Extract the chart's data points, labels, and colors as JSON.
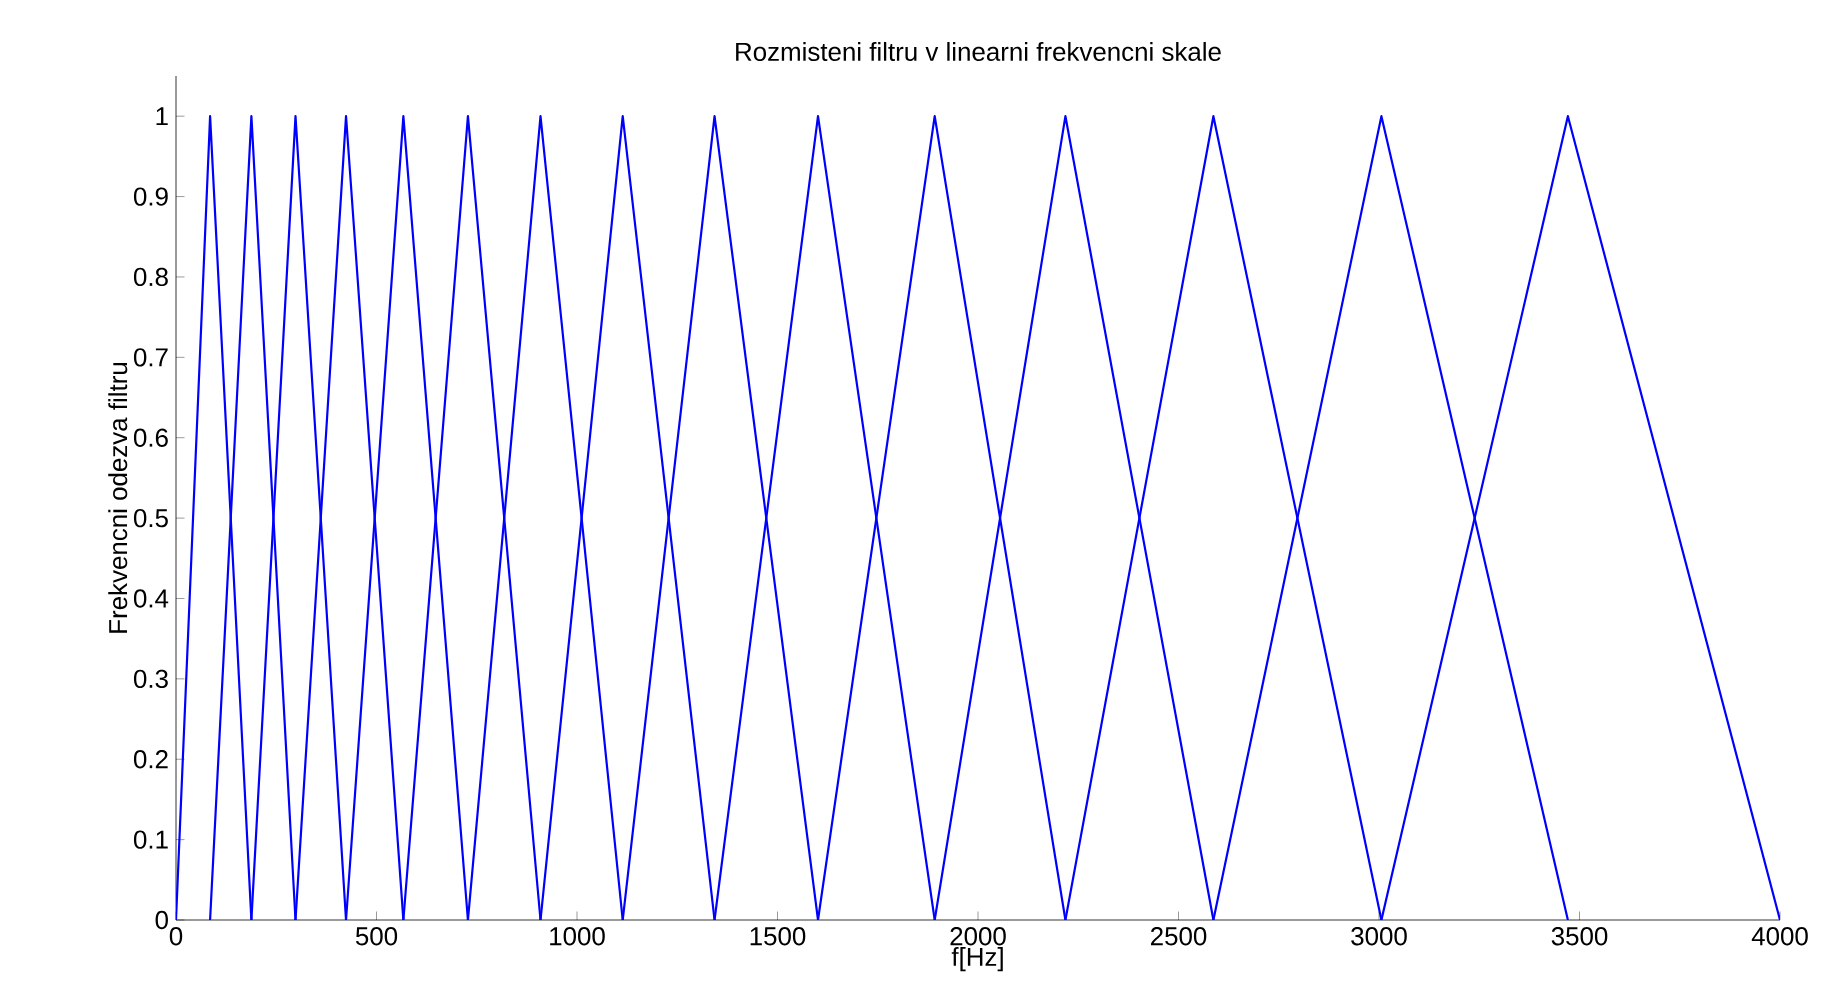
{
  "chart_data": {
    "type": "line",
    "title": "Rozmisteni filtru v linearni frekvencni skale",
    "xlabel": "f[Hz]",
    "ylabel": "Frekvencni odezva filtru",
    "xlim": [
      0,
      4000
    ],
    "ylim": [
      0,
      1.05
    ],
    "xticks": [
      0,
      500,
      1000,
      1500,
      2000,
      2500,
      3000,
      3500,
      4000
    ],
    "yticks": [
      0,
      0.1,
      0.2,
      0.3,
      0.4,
      0.5,
      0.6,
      0.7,
      0.8,
      0.9,
      1
    ],
    "grid": false,
    "marker": "none",
    "line_style": "solid",
    "series": [
      {
        "color": "#0000ff",
        "x": [
          0,
          85,
          188
        ],
        "values": [
          0,
          1,
          0
        ]
      },
      {
        "color": "#0000ff",
        "x": [
          85,
          188,
          298
        ],
        "values": [
          0,
          1,
          0
        ]
      },
      {
        "color": "#0000ff",
        "x": [
          188,
          298,
          424
        ],
        "values": [
          0,
          1,
          0
        ]
      },
      {
        "color": "#0000ff",
        "x": [
          298,
          424,
          567
        ],
        "values": [
          0,
          1,
          0
        ]
      },
      {
        "color": "#0000ff",
        "x": [
          424,
          567,
          728
        ],
        "values": [
          0,
          1,
          0
        ]
      },
      {
        "color": "#0000ff",
        "x": [
          567,
          728,
          909
        ],
        "values": [
          0,
          1,
          0
        ]
      },
      {
        "color": "#0000ff",
        "x": [
          728,
          909,
          1114
        ],
        "values": [
          0,
          1,
          0
        ]
      },
      {
        "color": "#0000ff",
        "x": [
          909,
          1114,
          1343
        ],
        "values": [
          0,
          1,
          0
        ]
      },
      {
        "color": "#0000ff",
        "x": [
          1114,
          1343,
          1601
        ],
        "values": [
          0,
          1,
          0
        ]
      },
      {
        "color": "#0000ff",
        "x": [
          1343,
          1601,
          1892
        ],
        "values": [
          0,
          1,
          0
        ]
      },
      {
        "color": "#0000ff",
        "x": [
          1601,
          1892,
          2218
        ],
        "values": [
          0,
          1,
          0
        ]
      },
      {
        "color": "#0000ff",
        "x": [
          1892,
          2218,
          2587
        ],
        "values": [
          0,
          1,
          0
        ]
      },
      {
        "color": "#0000ff",
        "x": [
          2218,
          2587,
          3006
        ],
        "values": [
          0,
          1,
          0
        ]
      },
      {
        "color": "#0000ff",
        "x": [
          2587,
          3006,
          3471
        ],
        "values": [
          0,
          1,
          0
        ]
      },
      {
        "color": "#0000ff",
        "x": [
          3006,
          3471,
          4000
        ],
        "values": [
          0,
          1,
          0
        ]
      }
    ]
  }
}
